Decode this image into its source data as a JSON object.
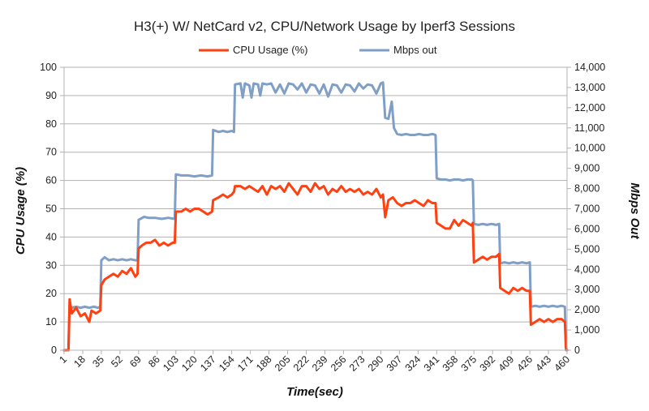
{
  "chart_data": {
    "type": "line",
    "title": "H3(+) W/ NetCard v2, CPU/Network Usage by Iperf3 Sessions",
    "xlabel": "Time(sec)",
    "ylabel": "CPU Usage (%)",
    "y2label": "Mbps out",
    "y2axis_title": "Mbps Out",
    "xlim": [
      1,
      460
    ],
    "ylim": [
      0,
      100
    ],
    "y2lim": [
      0,
      14000
    ],
    "x_ticks": [
      1,
      18,
      35,
      52,
      69,
      86,
      103,
      120,
      137,
      154,
      171,
      188,
      205,
      222,
      239,
      256,
      273,
      290,
      307,
      324,
      341,
      358,
      375,
      392,
      409,
      426,
      443,
      460
    ],
    "x_tick_labels": [
      "1",
      "18",
      "35",
      "52",
      "69",
      "86",
      "103",
      "120",
      "137",
      "154",
      "171",
      "188",
      "205",
      "222",
      "239",
      "256",
      "273",
      "290",
      "307",
      "324",
      "341",
      "358",
      "375",
      "392",
      "409",
      "426",
      "443",
      "460"
    ],
    "y_ticks": [
      0,
      10,
      20,
      30,
      40,
      50,
      60,
      70,
      80,
      90,
      100
    ],
    "y_tick_labels": [
      "0",
      "10",
      "20",
      "30",
      "40",
      "50",
      "60",
      "70",
      "80",
      "90",
      "100"
    ],
    "y2_ticks": [
      0,
      1000,
      2000,
      3000,
      4000,
      5000,
      6000,
      7000,
      8000,
      9000,
      10000,
      11000,
      12000,
      13000,
      14000
    ],
    "y2_tick_labels": [
      "0",
      "1,000",
      "2,000",
      "3,000",
      "4,000",
      "5,000",
      "6,000",
      "7,000",
      "8,000",
      "9,000",
      "10,000",
      "11,000",
      "12,000",
      "13,000",
      "14,000"
    ],
    "grid": true,
    "legend_position": "top",
    "series": [
      {
        "name": "CPU Usage (%)",
        "axis": "left",
        "color": "#ff4010",
        "points": [
          [
            1,
            0
          ],
          [
            5,
            0
          ],
          [
            6,
            18
          ],
          [
            8,
            13
          ],
          [
            12,
            15
          ],
          [
            16,
            12
          ],
          [
            20,
            13
          ],
          [
            24,
            10
          ],
          [
            26,
            14
          ],
          [
            30,
            13
          ],
          [
            34,
            14
          ],
          [
            35,
            23
          ],
          [
            38,
            25
          ],
          [
            42,
            26
          ],
          [
            46,
            27
          ],
          [
            50,
            26
          ],
          [
            54,
            28
          ],
          [
            58,
            27
          ],
          [
            62,
            29
          ],
          [
            66,
            26
          ],
          [
            68,
            27
          ],
          [
            69,
            36
          ],
          [
            72,
            37
          ],
          [
            76,
            38
          ],
          [
            80,
            38
          ],
          [
            84,
            39
          ],
          [
            88,
            37
          ],
          [
            92,
            38
          ],
          [
            96,
            37
          ],
          [
            100,
            38
          ],
          [
            102,
            38
          ],
          [
            103,
            49
          ],
          [
            108,
            49
          ],
          [
            112,
            50
          ],
          [
            116,
            49
          ],
          [
            120,
            50
          ],
          [
            124,
            50
          ],
          [
            128,
            49
          ],
          [
            132,
            48
          ],
          [
            136,
            49
          ],
          [
            137,
            53
          ],
          [
            142,
            54
          ],
          [
            146,
            55
          ],
          [
            150,
            54
          ],
          [
            154,
            55
          ],
          [
            156,
            56
          ],
          [
            157,
            58
          ],
          [
            162,
            58
          ],
          [
            166,
            57
          ],
          [
            170,
            58
          ],
          [
            174,
            57
          ],
          [
            178,
            56
          ],
          [
            182,
            58
          ],
          [
            186,
            55
          ],
          [
            190,
            58
          ],
          [
            194,
            57
          ],
          [
            198,
            58
          ],
          [
            202,
            56
          ],
          [
            206,
            59
          ],
          [
            210,
            57
          ],
          [
            214,
            55
          ],
          [
            218,
            58
          ],
          [
            222,
            58
          ],
          [
            226,
            56
          ],
          [
            230,
            59
          ],
          [
            234,
            57
          ],
          [
            238,
            58
          ],
          [
            242,
            55
          ],
          [
            246,
            57
          ],
          [
            250,
            56
          ],
          [
            254,
            58
          ],
          [
            258,
            56
          ],
          [
            262,
            57
          ],
          [
            266,
            56
          ],
          [
            270,
            57
          ],
          [
            274,
            55
          ],
          [
            278,
            56
          ],
          [
            282,
            55
          ],
          [
            286,
            57
          ],
          [
            290,
            54
          ],
          [
            292,
            55
          ],
          [
            294,
            47
          ],
          [
            297,
            53
          ],
          [
            301,
            54
          ],
          [
            305,
            52
          ],
          [
            309,
            51
          ],
          [
            313,
            52
          ],
          [
            317,
            52
          ],
          [
            321,
            53
          ],
          [
            325,
            52
          ],
          [
            329,
            51
          ],
          [
            333,
            53
          ],
          [
            337,
            52
          ],
          [
            340,
            52
          ],
          [
            341,
            45
          ],
          [
            345,
            44
          ],
          [
            349,
            43
          ],
          [
            353,
            43
          ],
          [
            357,
            46
          ],
          [
            361,
            44
          ],
          [
            365,
            46
          ],
          [
            369,
            45
          ],
          [
            373,
            44
          ],
          [
            374,
            45
          ],
          [
            375,
            31
          ],
          [
            379,
            32
          ],
          [
            383,
            33
          ],
          [
            387,
            32
          ],
          [
            391,
            33
          ],
          [
            395,
            33
          ],
          [
            398,
            34
          ],
          [
            399,
            22
          ],
          [
            403,
            21
          ],
          [
            407,
            20
          ],
          [
            411,
            22
          ],
          [
            415,
            21
          ],
          [
            419,
            22
          ],
          [
            423,
            21
          ],
          [
            426,
            21
          ],
          [
            427,
            9
          ],
          [
            431,
            10
          ],
          [
            435,
            11
          ],
          [
            439,
            10
          ],
          [
            443,
            11
          ],
          [
            447,
            10
          ],
          [
            451,
            11
          ],
          [
            455,
            11
          ],
          [
            458,
            10
          ],
          [
            459,
            1
          ],
          [
            460,
            0
          ]
        ]
      },
      {
        "name": "Mbps out",
        "axis": "right",
        "color": "#7f9fc6",
        "points": [
          [
            1,
            0
          ],
          [
            5,
            0
          ],
          [
            6,
            2200
          ],
          [
            8,
            2100
          ],
          [
            12,
            2150
          ],
          [
            16,
            2100
          ],
          [
            20,
            2150
          ],
          [
            24,
            2100
          ],
          [
            28,
            2150
          ],
          [
            32,
            2100
          ],
          [
            34,
            2150
          ],
          [
            35,
            4450
          ],
          [
            38,
            4600
          ],
          [
            42,
            4450
          ],
          [
            46,
            4500
          ],
          [
            50,
            4450
          ],
          [
            54,
            4500
          ],
          [
            58,
            4450
          ],
          [
            62,
            4500
          ],
          [
            66,
            4450
          ],
          [
            68,
            4450
          ],
          [
            69,
            6450
          ],
          [
            74,
            6600
          ],
          [
            78,
            6550
          ],
          [
            84,
            6550
          ],
          [
            90,
            6500
          ],
          [
            96,
            6550
          ],
          [
            102,
            6500
          ],
          [
            103,
            8700
          ],
          [
            108,
            8650
          ],
          [
            114,
            8650
          ],
          [
            120,
            8600
          ],
          [
            126,
            8650
          ],
          [
            132,
            8600
          ],
          [
            136,
            8650
          ],
          [
            137,
            10900
          ],
          [
            142,
            10800
          ],
          [
            146,
            10850
          ],
          [
            150,
            10800
          ],
          [
            154,
            10850
          ],
          [
            156,
            10800
          ],
          [
            157,
            13150
          ],
          [
            162,
            13200
          ],
          [
            164,
            12500
          ],
          [
            166,
            13200
          ],
          [
            170,
            13100
          ],
          [
            172,
            12500
          ],
          [
            174,
            13200
          ],
          [
            178,
            13150
          ],
          [
            180,
            12600
          ],
          [
            182,
            13200
          ],
          [
            186,
            13150
          ],
          [
            190,
            13200
          ],
          [
            194,
            12750
          ],
          [
            198,
            13150
          ],
          [
            202,
            12700
          ],
          [
            206,
            13200
          ],
          [
            210,
            13150
          ],
          [
            214,
            12900
          ],
          [
            218,
            13200
          ],
          [
            222,
            12750
          ],
          [
            226,
            13150
          ],
          [
            230,
            13100
          ],
          [
            234,
            12700
          ],
          [
            238,
            13150
          ],
          [
            242,
            12550
          ],
          [
            246,
            13150
          ],
          [
            250,
            13100
          ],
          [
            254,
            12750
          ],
          [
            258,
            13150
          ],
          [
            262,
            13100
          ],
          [
            266,
            12800
          ],
          [
            270,
            13200
          ],
          [
            274,
            12950
          ],
          [
            278,
            13150
          ],
          [
            282,
            13100
          ],
          [
            286,
            12700
          ],
          [
            290,
            13200
          ],
          [
            292,
            13250
          ],
          [
            294,
            11500
          ],
          [
            297,
            11450
          ],
          [
            300,
            12300
          ],
          [
            302,
            11000
          ],
          [
            305,
            10700
          ],
          [
            309,
            10650
          ],
          [
            313,
            10700
          ],
          [
            317,
            10650
          ],
          [
            321,
            10650
          ],
          [
            325,
            10700
          ],
          [
            329,
            10650
          ],
          [
            333,
            10650
          ],
          [
            337,
            10700
          ],
          [
            340,
            10650
          ],
          [
            341,
            8500
          ],
          [
            345,
            8450
          ],
          [
            349,
            8450
          ],
          [
            353,
            8400
          ],
          [
            357,
            8450
          ],
          [
            361,
            8450
          ],
          [
            365,
            8400
          ],
          [
            369,
            8450
          ],
          [
            373,
            8450
          ],
          [
            374,
            8400
          ],
          [
            375,
            6250
          ],
          [
            379,
            6200
          ],
          [
            383,
            6250
          ],
          [
            387,
            6200
          ],
          [
            391,
            6250
          ],
          [
            395,
            6200
          ],
          [
            398,
            6250
          ],
          [
            399,
            4300
          ],
          [
            403,
            4350
          ],
          [
            407,
            4300
          ],
          [
            411,
            4350
          ],
          [
            415,
            4300
          ],
          [
            419,
            4350
          ],
          [
            423,
            4300
          ],
          [
            426,
            4350
          ],
          [
            427,
            2150
          ],
          [
            431,
            2200
          ],
          [
            435,
            2150
          ],
          [
            439,
            2200
          ],
          [
            443,
            2150
          ],
          [
            447,
            2200
          ],
          [
            451,
            2150
          ],
          [
            455,
            2200
          ],
          [
            458,
            2150
          ],
          [
            459,
            0
          ],
          [
            460,
            0
          ]
        ]
      }
    ]
  }
}
